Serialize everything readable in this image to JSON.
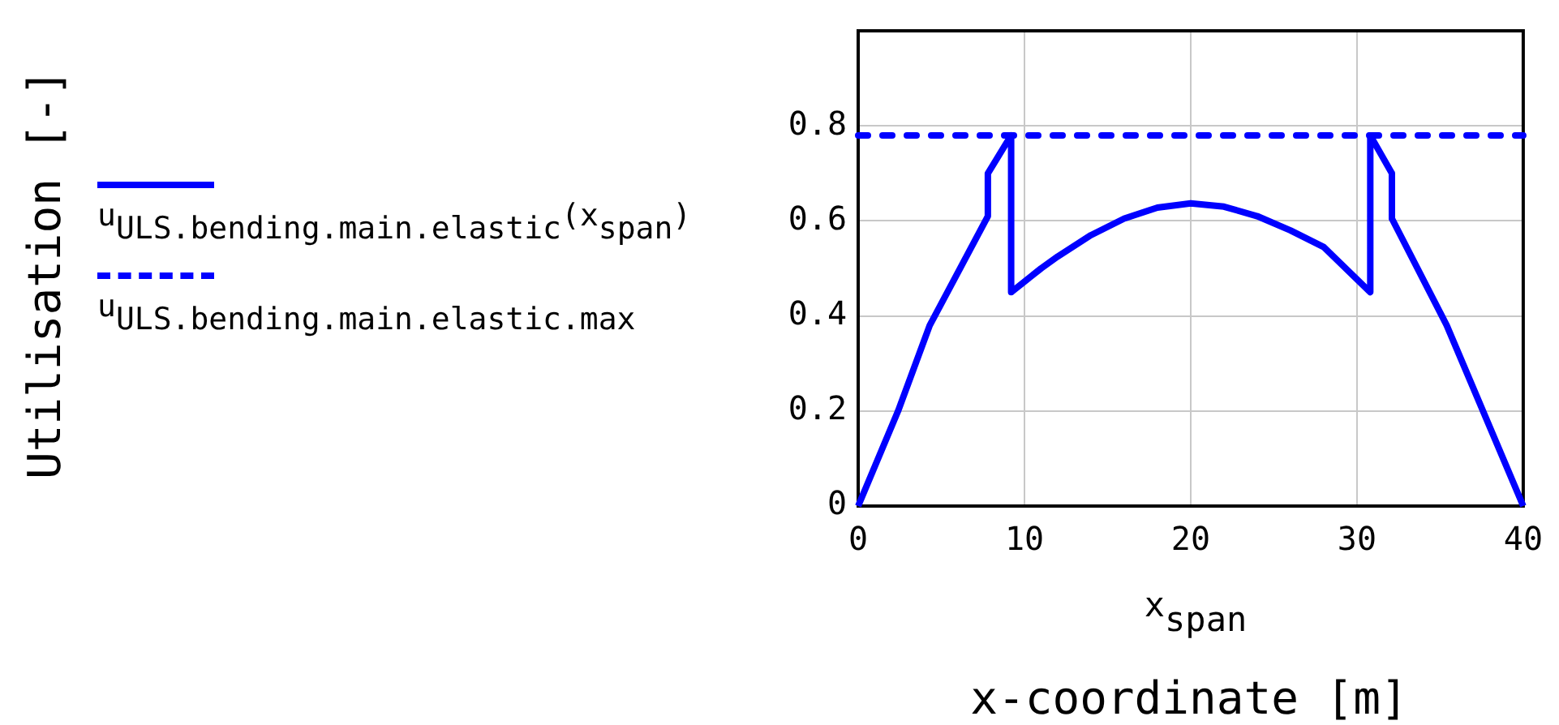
{
  "chart_data": {
    "type": "line",
    "xlabel": "x-coordinate [m]",
    "annotations": [
      "Utilisation [-]",
      "x$_{span}$"
    ],
    "series": [
      {
        "name": "u$_{ULS.bending.main.elastic}$(x$_{span}$)",
        "color": "#0000ff",
        "line_style": "solid",
        "x": [
          0,
          2.4,
          4.3,
          7.8,
          7.8,
          9.2,
          9.2,
          11,
          12,
          14,
          16,
          18,
          20,
          22,
          24,
          26,
          28,
          30.8,
          30.8,
          32.1,
          32.1,
          35.4,
          40
        ],
        "values": [
          0,
          0.2,
          0.38,
          0.61,
          0.7,
          0.78,
          0.45,
          0.5,
          0.525,
          0.57,
          0.605,
          0.628,
          0.637,
          0.63,
          0.61,
          0.58,
          0.545,
          0.45,
          0.78,
          0.7,
          0.605,
          0.38,
          0
        ]
      },
      {
        "name": "u$_{ULS.bending.main.elastic.max}$",
        "color": "#0000ff",
        "line_style": "dashed",
        "x": [
          0,
          40
        ],
        "values": [
          0.78,
          0.78
        ]
      }
    ],
    "xlim": [
      0,
      40
    ],
    "ylim": [
      0,
      1
    ],
    "xticks": [
      0,
      10,
      20,
      30,
      40
    ],
    "yticks": [
      0,
      0.2,
      0.4,
      0.6,
      0.8
    ],
    "grid": true,
    "legend": "left"
  }
}
